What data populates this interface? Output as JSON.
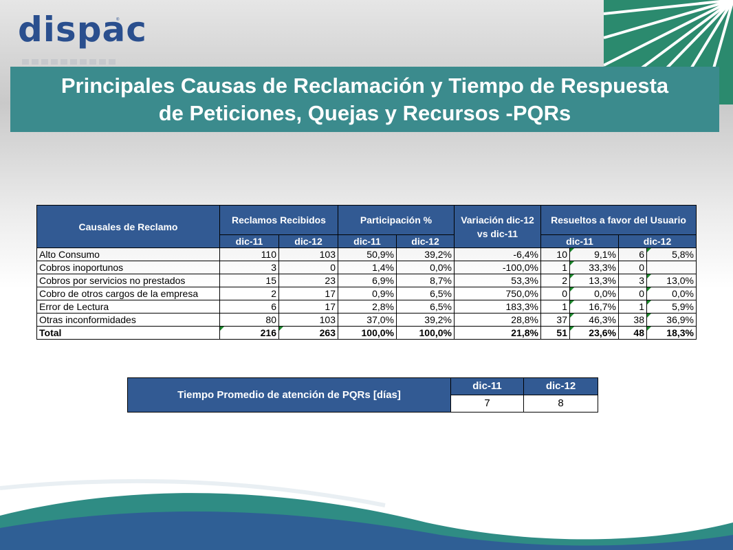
{
  "logo": {
    "text": "dispac",
    "trademark": "®"
  },
  "title": {
    "line1": "Principales Causas de Reclamación y Tiempo de Respuesta",
    "line2": "de Peticiones, Quejas y Recursos -PQRs"
  },
  "claims_table": {
    "headers": {
      "cause": "Causales de Reclamo",
      "received": "Reclamos Recibidos",
      "share": "Participación %",
      "variation": "Variación dic-12 vs dic-11",
      "resolved": "Resueltos a favor del Usuario",
      "p1": "dic-11",
      "p2": "dic-12"
    },
    "rows": [
      {
        "cause": "Alto Consumo",
        "r11": "110",
        "r12": "103",
        "p11": "50,9%",
        "p12": "39,2%",
        "var": "-6,4%",
        "f11": "10",
        "f11p": "9,1%",
        "f12": "6",
        "f12p": "5,8%"
      },
      {
        "cause": "Cobros inoportunos",
        "r11": "3",
        "r12": "0",
        "p11": "1,4%",
        "p12": "0,0%",
        "var": "-100,0%",
        "f11": "1",
        "f11p": "33,3%",
        "f12": "0",
        "f12p": ""
      },
      {
        "cause": "Cobros por servicios no prestados",
        "r11": "15",
        "r12": "23",
        "p11": "6,9%",
        "p12": "8,7%",
        "var": "53,3%",
        "f11": "2",
        "f11p": "13,3%",
        "f12": "3",
        "f12p": "13,0%"
      },
      {
        "cause": "Cobro de otros cargos de la empresa",
        "r11": "2",
        "r12": "17",
        "p11": "0,9%",
        "p12": "6,5%",
        "var": "750,0%",
        "f11": "0",
        "f11p": "0,0%",
        "f12": "0",
        "f12p": "0,0%"
      },
      {
        "cause": "Error de Lectura",
        "r11": "6",
        "r12": "17",
        "p11": "2,8%",
        "p12": "6,5%",
        "var": "183,3%",
        "f11": "1",
        "f11p": "16,7%",
        "f12": "1",
        "f12p": "5,9%"
      },
      {
        "cause": "Otras inconformidades",
        "r11": "80",
        "r12": "103",
        "p11": "37,0%",
        "p12": "39,2%",
        "var": "28,8%",
        "f11": "37",
        "f11p": "46,3%",
        "f12": "38",
        "f12p": "36,9%"
      }
    ],
    "total": {
      "cause": "Total",
      "r11": "216",
      "r12": "263",
      "p11": "100,0%",
      "p12": "100,0%",
      "var": "21,8%",
      "f11": "51",
      "f11p": "23,6%",
      "f12": "48",
      "f12p": "18,3%"
    }
  },
  "time_table": {
    "label": "Tiempo Promedio de atención de PQRs [días]",
    "p1": "dic-11",
    "p2": "dic-12",
    "v1": "7",
    "v2": "8"
  }
}
